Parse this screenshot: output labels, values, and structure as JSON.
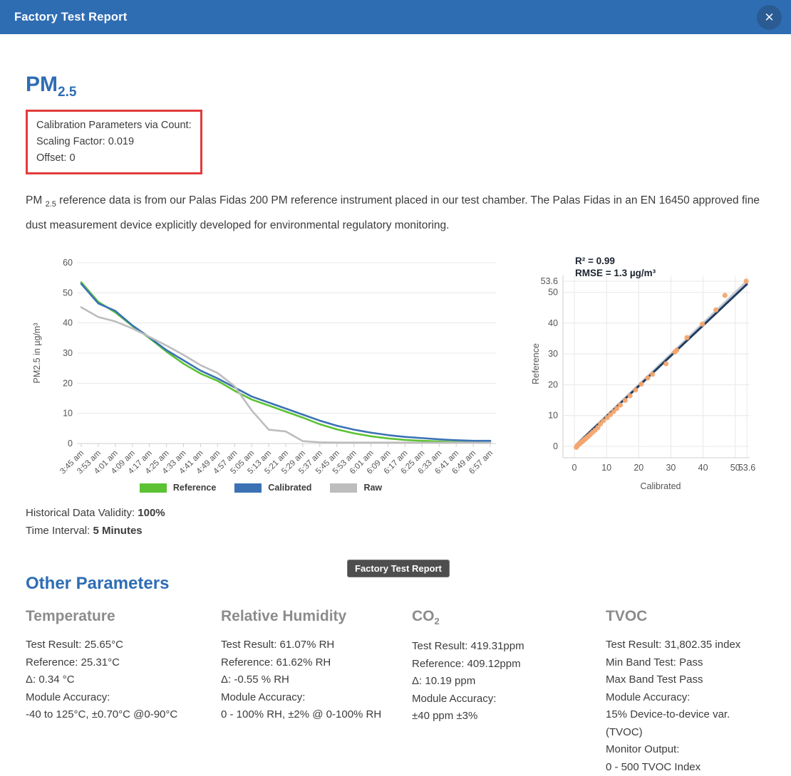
{
  "header": {
    "title": "Factory Test Report",
    "close_glyph": "✕"
  },
  "colors": {
    "header_bg": "#2F6DB3",
    "heading_blue": "#2E6DB4",
    "callout_red": "#E23B3B",
    "reference_green": "#5CC234",
    "calibrated_blue": "#3A72B4",
    "raw_gray": "#BDBDBD",
    "scatter_orange": "#F3A770",
    "fit_navy": "#1E3D64",
    "identity_gray": "#C8CCD2"
  },
  "pm_section": {
    "title_main": "PM",
    "title_sub": "2.5",
    "calibration_box": {
      "line1": "Calibration Parameters via Count:",
      "line2": "Scaling Factor: 0.019",
      "line3": "Offset: 0"
    },
    "paragraph_prefix": "PM ",
    "paragraph_sub": "2.5",
    "paragraph_rest": " reference data is from our Palas Fidas 200 PM reference instrument placed in our test chamber. The Palas Fidas in an EN 16450 approved fine dust measurement device explicitly developed for environmental regulatory monitoring.",
    "validity_label": "Historical Data Validity: ",
    "validity_value": "100%",
    "interval_label": "Time Interval: ",
    "interval_value": "5 Minutes"
  },
  "tooltip": {
    "text": "Factory Test Report"
  },
  "other_section": {
    "title": "Other Parameters"
  },
  "params": [
    {
      "title": "Temperature",
      "lines": [
        "Test Result: 25.65°C",
        "Reference: 25.31°C",
        "Δ: 0.34 °C",
        "Module Accuracy:",
        "-40 to 125°C, ±0.70°C @0-90°C"
      ]
    },
    {
      "title": "Relative Humidity",
      "lines": [
        "Test Result: 61.07% RH",
        "Reference: 61.62% RH",
        "Δ: -0.55 % RH",
        "Module Accuracy:",
        "0 - 100% RH, ±2% @ 0-100% RH"
      ]
    },
    {
      "title": "CO",
      "title_sub": "2",
      "lines": [
        "Test Result: 419.31ppm",
        "Reference: 409.12ppm",
        "Δ: 10.19 ppm",
        "Module Accuracy:",
        "±40 ppm ±3%"
      ]
    },
    {
      "title": "TVOC",
      "lines": [
        "Test Result: 31,802.35 index",
        "Min Band Test: Pass",
        "Max Band Test Pass",
        "Module Accuracy:",
        "15% Device-to-device var. (TVOC)",
        "Monitor Output:",
        "0 - 500 TVOC Index"
      ]
    }
  ],
  "chart_data": [
    {
      "type": "line",
      "title": "",
      "ylabel": "PM2.5 in µg/m³",
      "xlabel": "",
      "ylim": [
        0,
        60
      ],
      "yticks": [
        0,
        10,
        20,
        30,
        40,
        50,
        60
      ],
      "grid": "horizontal",
      "legend_position": "bottom",
      "x": [
        "3:45 am",
        "3:53 am",
        "4:01 am",
        "4:09 am",
        "4:17 am",
        "4:25 am",
        "4:33 am",
        "4:41 am",
        "4:49 am",
        "4:57 am",
        "5:05 am",
        "5:13 am",
        "5:21 am",
        "5:29 am",
        "5:37 am",
        "5:45 am",
        "5:53 am",
        "6:01 am",
        "6:09 am",
        "6:17 am",
        "6:25 am",
        "6:33 am",
        "6:41 am",
        "6:49 am",
        "6:57 am"
      ],
      "series": [
        {
          "name": "Reference",
          "color": "#5CC234",
          "values": [
            53.5,
            47,
            43.5,
            39,
            35,
            30.5,
            26.5,
            23.2,
            20.8,
            17.5,
            14.6,
            12.6,
            10.6,
            8.6,
            6.4,
            4.7,
            3.4,
            2.4,
            1.7,
            1.2,
            0.9,
            0.7,
            0.5,
            0.4,
            0.4
          ]
        },
        {
          "name": "Calibrated",
          "color": "#3A72B4",
          "values": [
            53,
            46.5,
            44,
            39.2,
            35.2,
            31,
            27.6,
            24.2,
            21.6,
            18.6,
            15.6,
            13.6,
            11.6,
            9.6,
            7.6,
            5.9,
            4.6,
            3.6,
            2.8,
            2.2,
            1.8,
            1.4,
            1.1,
            0.9,
            0.9
          ]
        },
        {
          "name": "Raw",
          "color": "#BDBDBD",
          "values": [
            45.2,
            42,
            40.5,
            38.2,
            35.4,
            32.5,
            29.4,
            26,
            23.4,
            19,
            11,
            4.6,
            4,
            0.8,
            0.4,
            0.3,
            0.3,
            0.3,
            0.3,
            0.3,
            0.3,
            0.3,
            0.3,
            0.3,
            0.3
          ]
        }
      ]
    },
    {
      "type": "scatter",
      "xlabel": "Calibrated",
      "ylabel": "Reference",
      "xlim": [
        0,
        53.6
      ],
      "ylim": [
        -3,
        55
      ],
      "xticks": [
        0,
        10,
        20,
        30,
        40,
        50,
        53.6
      ],
      "yticks": [
        0,
        10,
        20,
        30,
        40,
        50,
        53.6
      ],
      "grid": "both",
      "annotations": [
        "R² = 0.99",
        "RMSE = 1.3  µg/m³"
      ],
      "point_color": "#F3A770",
      "fit_line": {
        "from": [
          0.5,
          0.4
        ],
        "to": [
          53.6,
          52.6
        ],
        "color": "#1E3D64"
      },
      "identity_line": {
        "from": [
          0.5,
          0.5
        ],
        "to": [
          53.6,
          53.6
        ],
        "color": "#C8CCD2"
      },
      "points": [
        [
          0.6,
          -0.3
        ],
        [
          0.8,
          0
        ],
        [
          1,
          0.3
        ],
        [
          1.2,
          0.5
        ],
        [
          1.4,
          0.7
        ],
        [
          1.7,
          0.9
        ],
        [
          1.9,
          1.1
        ],
        [
          2.1,
          1.3
        ],
        [
          2.4,
          1.5
        ],
        [
          2.7,
          1.8
        ],
        [
          3,
          2.1
        ],
        [
          3.4,
          2.4
        ],
        [
          3.8,
          2.8
        ],
        [
          4.3,
          3.2
        ],
        [
          4.9,
          3.8
        ],
        [
          5.6,
          4.5
        ],
        [
          6.4,
          5.2
        ],
        [
          7.3,
          6.1
        ],
        [
          8.1,
          7.3
        ],
        [
          9,
          8.3
        ],
        [
          10.2,
          9.3
        ],
        [
          11.2,
          10.3
        ],
        [
          12.2,
          11.3
        ],
        [
          13.2,
          12.3
        ],
        [
          14.3,
          13.4
        ],
        [
          15.8,
          14.9
        ],
        [
          17.3,
          16.4
        ],
        [
          19,
          18.3
        ],
        [
          20.8,
          20.2
        ],
        [
          22.8,
          22.2
        ],
        [
          24.3,
          23.4
        ],
        [
          28.5,
          26.8
        ],
        [
          31.2,
          30.6
        ],
        [
          31.8,
          31.2
        ],
        [
          35,
          35.3
        ],
        [
          39.8,
          39.7
        ],
        [
          44,
          44.3
        ],
        [
          46.8,
          49
        ],
        [
          53.4,
          53.6
        ]
      ]
    }
  ]
}
